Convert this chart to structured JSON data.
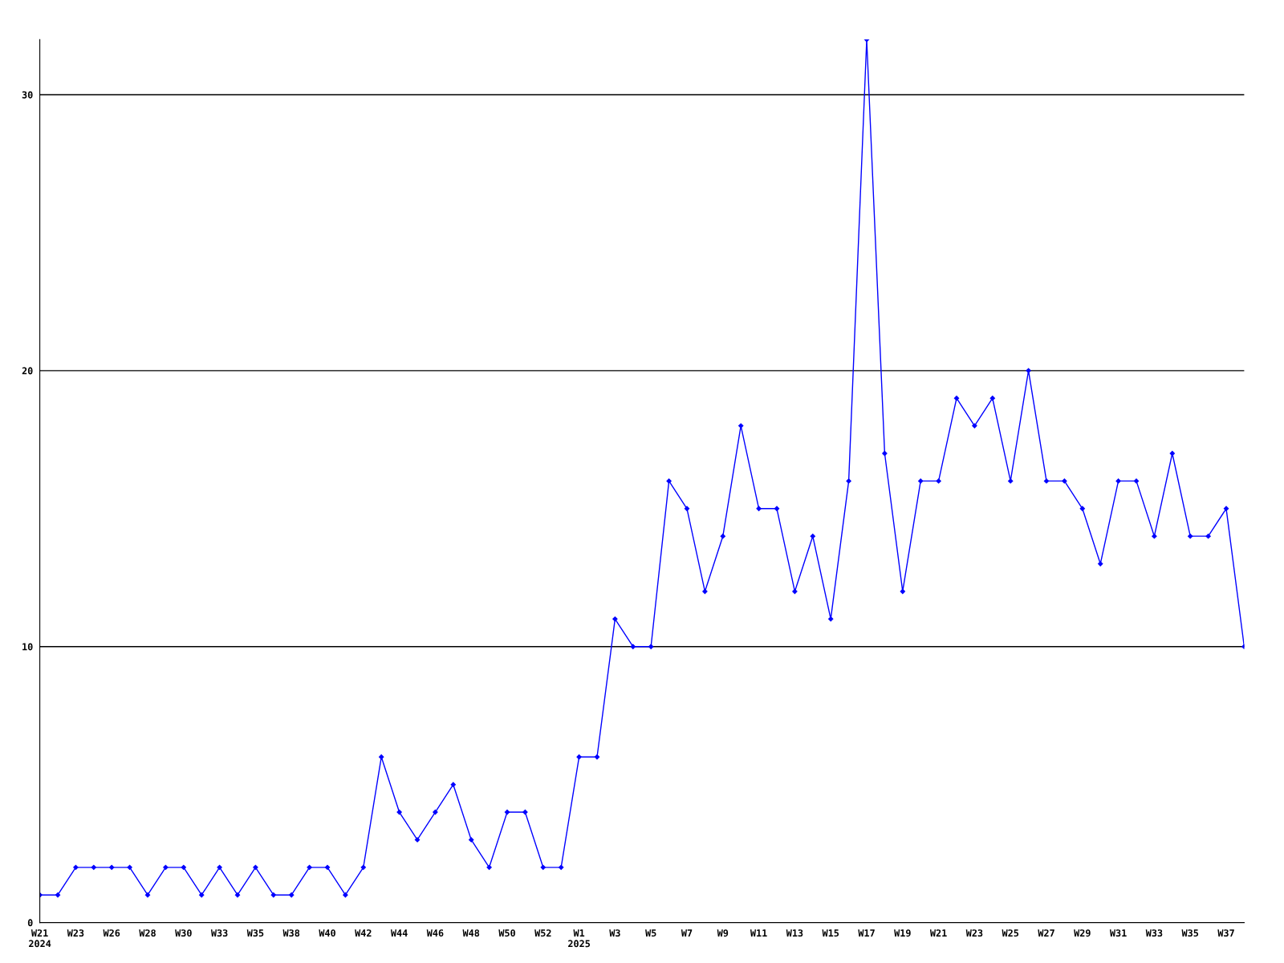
{
  "chart_data": {
    "type": "line",
    "categories": [
      "W21\n2024",
      null,
      "W23",
      null,
      "W26",
      null,
      "W28",
      null,
      "W30",
      null,
      "W33",
      null,
      "W35",
      null,
      "W38",
      null,
      "W40",
      null,
      "W42",
      null,
      "W44",
      null,
      "W46",
      null,
      "W48",
      null,
      "W50",
      null,
      "W52",
      null,
      "W1\n2025",
      null,
      "W3",
      null,
      "W5",
      null,
      "W7",
      null,
      "W9",
      null,
      "W11",
      null,
      "W13",
      null,
      "W15",
      null,
      "W17",
      null,
      "W19",
      null,
      "W21",
      null,
      "W23",
      null,
      "W25",
      null,
      "W27",
      null,
      "W29",
      null,
      "W31",
      null,
      "W33",
      null,
      "W35",
      null,
      "W37",
      null
    ],
    "series": [
      {
        "color": "#0000ff",
        "values": [
          1,
          1,
          2,
          2,
          2,
          2,
          1,
          2,
          2,
          1,
          2,
          1,
          2,
          1,
          1,
          2,
          2,
          1,
          2,
          6,
          4,
          3,
          4,
          5,
          3,
          2,
          4,
          4,
          2,
          2,
          6,
          6,
          11,
          10,
          10,
          16,
          15,
          12,
          14,
          18,
          15,
          15,
          12,
          14,
          11,
          16,
          32,
          17,
          12,
          16,
          16,
          19,
          18,
          19,
          16,
          20,
          16,
          16,
          15,
          13,
          16,
          16,
          14,
          17,
          14,
          14,
          15,
          10
        ]
      }
    ],
    "ylim": [
      0,
      32
    ],
    "yticks": [
      0,
      10,
      20,
      30
    ],
    "grid": "y",
    "marker": "diamond",
    "line_style": "solid",
    "legend": false
  }
}
